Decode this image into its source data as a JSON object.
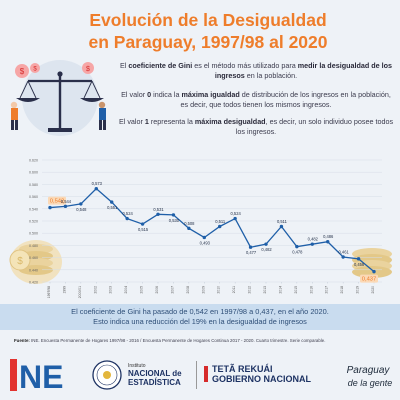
{
  "header": {
    "title_line1": "Evolución de la Desigualdad",
    "title_line2": "en Paraguay, 1997/98 al 2020"
  },
  "description": {
    "p1_a": "El ",
    "p1_b": "coeficiente de Gini",
    "p1_c": " es el método más utilizado para ",
    "p1_d": "medir la desigualdad de los ingresos",
    "p1_e": " en la población.",
    "p2_a": "El valor ",
    "p2_b": "0",
    "p2_c": " indica la ",
    "p2_d": "máxima igualdad",
    "p2_e": " de distribución de los ingresos en la población, es decir, que todos tienen los mismos ingresos.",
    "p3_a": "El valor ",
    "p3_b": "1",
    "p3_c": " representa la ",
    "p3_d": "máxima desigualdad",
    "p3_e": ", es decir, un solo individuo posee todos los ingresos."
  },
  "chart_data": {
    "type": "line",
    "title": "",
    "xlabel": "",
    "ylabel": "",
    "ylim": [
      0.42,
      0.62
    ],
    "yticks": [
      "0.420",
      "0.440",
      "0.460",
      "0.480",
      "0.500",
      "0.520",
      "0.540",
      "0.560",
      "0.580",
      "0.600",
      "0.620"
    ],
    "categories": [
      "1997/98",
      "1999",
      "2000/01",
      "2002",
      "2003",
      "2004",
      "2005",
      "2006",
      "2007",
      "2008",
      "2009",
      "2010",
      "2011",
      "2012",
      "2013",
      "2014",
      "2015",
      "2016",
      "2017",
      "2018",
      "2019",
      "2020"
    ],
    "values": [
      0.542,
      0.544,
      0.548,
      0.573,
      0.551,
      0.524,
      0.515,
      0.531,
      0.53,
      0.508,
      0.493,
      0.511,
      0.524,
      0.477,
      0.482,
      0.511,
      0.478,
      0.482,
      0.486,
      0.461,
      0.458,
      0.437
    ],
    "value_labels": [
      "0,542",
      "0,544",
      "0,548",
      "0,573",
      "0,551",
      "0,524",
      "0,515",
      "0,531",
      "0,530",
      "0,508",
      "0,493",
      "0,511",
      "0,524",
      "0,477",
      "0,482",
      "0,511",
      "0,478",
      "0,482",
      "0,486",
      "0,461",
      "0,458",
      "0,437"
    ],
    "line_color": "#1f5fa8",
    "highlight_color": "#ee7d2b",
    "grid": true
  },
  "summary": {
    "line1": "El coeficiente de Gini ha pasado de 0,542 en 1997/98 a 0,437, en el año 2020.",
    "line2": "Esto indica una reducción del 19% en la desigualdad de ingresos"
  },
  "source": {
    "label": "Fuente:",
    "text": " INE. Encuesta Permanente de Hogares 1997/98 - 2016 / Encuesta Permanente de Hogares Continua 2017 - 2020. Cuarto trimestre. Serie comparable."
  },
  "footer": {
    "ine_logo": "NE",
    "institution_label": "Instituto",
    "institution_line1": "NACIONAL de",
    "institution_line2": "ESTADÍSTICA",
    "gov_line1": "TETÃ REKUÁI",
    "gov_line2": "GOBIERNO NACIONAL",
    "slogan_line1": "Paraguay",
    "slogan_line2": "de la gente"
  },
  "colors": {
    "title": "#ee7d2b",
    "accent_blue": "#1f5fa8",
    "summary_bg": "#c9dcef",
    "ine_red": "#e2332f",
    "ine_blue": "#1f5fa8"
  }
}
